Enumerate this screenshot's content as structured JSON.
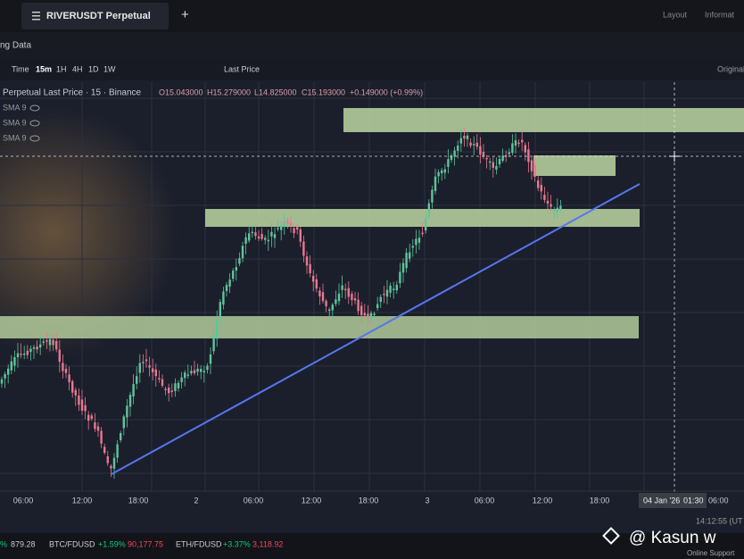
{
  "tab": {
    "title": "RIVERUSDT Perpetual",
    "plus": "+"
  },
  "top_right": {
    "layout": "Layout",
    "info": "Informat"
  },
  "subheader": "ng Data",
  "toolbar": {
    "buttons": [
      "Time",
      "15m",
      "1H",
      "4H",
      "1D",
      "1W"
    ],
    "price_mode": "Last Price",
    "right": "Original"
  },
  "legend": {
    "symbol": "Perpetual Last Price · 15 · Binance",
    "open": "O15.043000",
    "high": "H15.279000",
    "low": "L14.825000",
    "close": "C15.193000",
    "change": "+0.149000 (+0.99%)",
    "indicators": [
      "SMA 9",
      "SMA 9",
      "SMA 9"
    ]
  },
  "x_axis": [
    "06:00",
    "12:00",
    "18:00",
    "2",
    "06:00",
    "12:00",
    "18:00",
    "3",
    "06:00",
    "12:00",
    "18:00"
  ],
  "crosshair": {
    "date": "04 Jan '26",
    "time": "01:30",
    "after": "06:00"
  },
  "clock": "14:12:55 (UT",
  "ticker": {
    "first_change": "%",
    "first_price": "879.28",
    "items": [
      {
        "symbol": "BTC/FDUSD",
        "change": "+1.59%",
        "price": "90,177.75"
      },
      {
        "symbol": "ETH/FDUSD",
        "change": "+3.37%",
        "price": "3,118.92"
      }
    ]
  },
  "watermark": "@ Kasun w",
  "support": "Online Support"
}
